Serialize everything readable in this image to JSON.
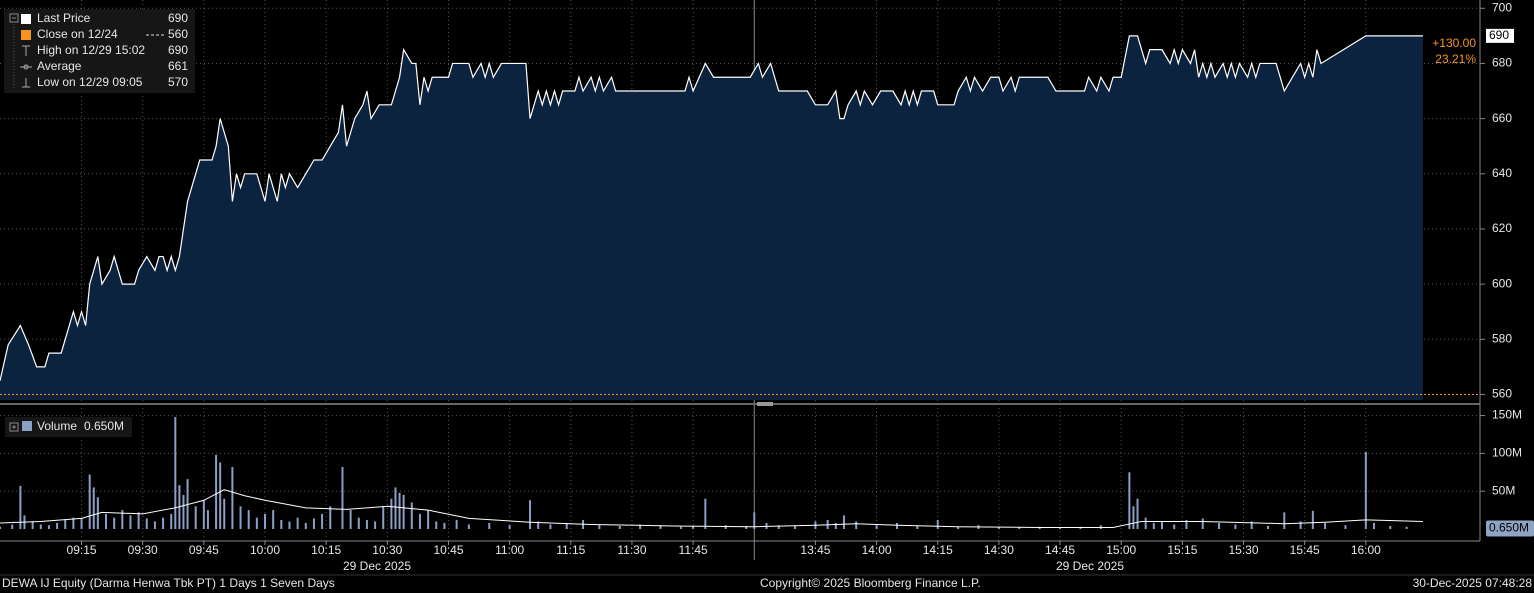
{
  "chart_data": [
    {
      "type": "area",
      "x": [
        "08:55",
        "08:57",
        "09:00",
        "09:02",
        "09:04",
        "09:06",
        "09:07",
        "09:10",
        "09:12",
        "09:13",
        "09:14",
        "09:15",
        "09:16",
        "09:17",
        "09:18",
        "09:19",
        "09:20",
        "09:22",
        "09:23",
        "09:24",
        "09:25",
        "09:28",
        "09:29",
        "09:31",
        "09:33",
        "09:34",
        "09:35",
        "09:36",
        "09:37",
        "09:38",
        "09:39",
        "09:40",
        "09:41",
        "09:42",
        "09:43",
        "09:44",
        "09:47",
        "09:48",
        "09:49",
        "09:50",
        "09:51",
        "09:52",
        "09:53",
        "09:54",
        "09:55",
        "09:58",
        "09:59",
        "10:00",
        "10:01",
        "10:02",
        "10:03",
        "10:04",
        "10:05",
        "10:06",
        "10:08",
        "10:10",
        "10:12",
        "10:14",
        "10:16",
        "10:18",
        "10:19",
        "10:20",
        "10:22",
        "10:24",
        "10:25",
        "10:26",
        "10:28",
        "10:31",
        "10:33",
        "10:34",
        "10:36",
        "10:37",
        "10:38",
        "10:39",
        "10:40",
        "10:41",
        "10:45",
        "10:46",
        "10:50",
        "10:51",
        "10:53",
        "10:54",
        "10:55",
        "10:56",
        "10:58",
        "11:04",
        "11:05",
        "11:07",
        "11:08",
        "11:09",
        "11:10",
        "11:11",
        "11:12",
        "11:13",
        "11:16",
        "11:17",
        "11:18",
        "11:20",
        "11:21",
        "11:22",
        "11:23",
        "11:25",
        "11:26",
        "11:43",
        "11:44",
        "11:45",
        "11:48",
        "11:50",
        "11:59",
        "13:31",
        "13:32",
        "13:34",
        "13:35",
        "13:36",
        "13:43",
        "13:45",
        "13:48",
        "13:50",
        "13:51",
        "13:52",
        "13:53",
        "13:55",
        "13:56",
        "13:57",
        "13:59",
        "14:01",
        "14:04",
        "14:06",
        "14:07",
        "14:08",
        "14:09",
        "14:10",
        "14:11",
        "14:14",
        "14:15",
        "14:19",
        "14:20",
        "14:22",
        "14:23",
        "14:24",
        "14:26",
        "14:28",
        "14:30",
        "14:31",
        "14:33",
        "14:34",
        "14:35",
        "14:42",
        "14:44",
        "14:51",
        "14:52",
        "14:54",
        "14:55",
        "14:57",
        "14:58",
        "15:00",
        "15:02",
        "15:04",
        "15:06",
        "15:07",
        "15:10",
        "15:12",
        "15:13",
        "15:14",
        "15:15",
        "15:17",
        "15:18",
        "15:19",
        "15:20",
        "15:21",
        "15:22",
        "15:23",
        "15:25",
        "15:26",
        "15:27",
        "15:28",
        "15:29",
        "15:31",
        "15:32",
        "15:33",
        "15:34",
        "15:38",
        "15:40",
        "15:42",
        "15:44",
        "15:45",
        "15:46",
        "15:47",
        "15:48",
        "15:49",
        "16:00",
        "16:14"
      ],
      "series": [
        {
          "name": "Last Price",
          "color": "#ffffff",
          "fill": "#0c2340",
          "values": [
            565,
            578,
            585,
            578,
            570,
            570,
            575,
            575,
            585,
            590,
            585,
            590,
            585,
            600,
            605,
            610,
            600,
            605,
            610,
            605,
            600,
            600,
            605,
            610,
            605,
            610,
            610,
            605,
            610,
            605,
            610,
            620,
            630,
            635,
            640,
            645,
            645,
            650,
            660,
            655,
            650,
            630,
            640,
            635,
            640,
            640,
            635,
            630,
            640,
            635,
            630,
            640,
            635,
            640,
            635,
            640,
            645,
            645,
            650,
            655,
            665,
            650,
            660,
            665,
            670,
            660,
            665,
            665,
            675,
            685,
            680,
            680,
            665,
            675,
            670,
            675,
            675,
            680,
            680,
            675,
            680,
            675,
            680,
            675,
            680,
            680,
            660,
            670,
            665,
            670,
            665,
            670,
            665,
            670,
            670,
            675,
            670,
            675,
            670,
            675,
            670,
            675,
            670,
            670,
            675,
            670,
            680,
            675,
            675,
            680,
            675,
            680,
            675,
            670,
            670,
            665,
            665,
            670,
            660,
            660,
            665,
            670,
            665,
            670,
            665,
            670,
            670,
            665,
            670,
            665,
            670,
            665,
            670,
            670,
            665,
            665,
            670,
            675,
            670,
            675,
            670,
            675,
            675,
            670,
            675,
            670,
            675,
            675,
            670,
            670,
            675,
            670,
            675,
            670,
            675,
            675,
            690,
            690,
            680,
            685,
            685,
            680,
            685,
            680,
            685,
            680,
            685,
            675,
            680,
            675,
            680,
            675,
            680,
            675,
            680,
            675,
            680,
            675,
            680,
            675,
            680,
            680,
            670,
            675,
            680,
            675,
            680,
            675,
            685,
            680,
            690,
            690
          ]
        }
      ],
      "xlim": [
        "08:55",
        "16:28"
      ],
      "x_break": [
        "12:00",
        "13:30"
      ],
      "xticks": [
        "09:15",
        "09:30",
        "09:45",
        "10:00",
        "10:15",
        "10:30",
        "10:45",
        "11:00",
        "11:15",
        "11:30",
        "11:45",
        "13:45",
        "14:00",
        "14:15",
        "14:30",
        "14:45",
        "15:00",
        "15:15",
        "15:30",
        "15:45",
        "16:00"
      ],
      "x_date_labels": [
        "29 Dec 2025",
        "29 Dec 2025"
      ],
      "ylim": [
        558,
        703
      ],
      "yticks": [
        560,
        580,
        600,
        620,
        640,
        660,
        680,
        700
      ],
      "grid": true,
      "legend": [
        {
          "name": "Last Price",
          "value": 690,
          "color": "#ffffff"
        },
        {
          "name": "Close on 12/24",
          "value": 560,
          "color": "#f7941d"
        },
        {
          "name": "High on 12/29 15:02",
          "value": 690
        },
        {
          "name": "Average",
          "value": 661
        },
        {
          "name": "Low on 12/29 09:05",
          "value": 570
        }
      ],
      "change": {
        "value": 130,
        "label": "+130.00"
      },
      "change_percent": {
        "value": 23.21,
        "label": "23.21%"
      },
      "annotation_color": "#f7941d"
    },
    {
      "type": "bar",
      "x": [
        "08:55",
        "08:58",
        "09:00",
        "09:01",
        "09:03",
        "09:05",
        "09:07",
        "09:09",
        "09:11",
        "09:13",
        "09:15",
        "09:17",
        "09:18",
        "09:19",
        "09:21",
        "09:23",
        "09:25",
        "09:27",
        "09:29",
        "09:31",
        "09:33",
        "09:35",
        "09:37",
        "09:38",
        "09:39",
        "09:40",
        "09:41",
        "09:43",
        "09:45",
        "09:46",
        "09:48",
        "09:49",
        "09:50",
        "09:52",
        "09:54",
        "09:56",
        "09:58",
        "10:00",
        "10:02",
        "10:04",
        "10:06",
        "10:08",
        "10:10",
        "10:12",
        "10:14",
        "10:16",
        "10:19",
        "10:21",
        "10:23",
        "10:25",
        "10:27",
        "10:29",
        "10:31",
        "10:32",
        "10:33",
        "10:34",
        "10:36",
        "10:38",
        "10:40",
        "10:42",
        "10:44",
        "10:47",
        "10:50",
        "10:55",
        "11:00",
        "11:05",
        "11:07",
        "11:10",
        "11:14",
        "11:18",
        "11:22",
        "11:27",
        "11:32",
        "11:37",
        "11:42",
        "11:45",
        "11:48",
        "11:53",
        "11:58",
        "13:30",
        "13:33",
        "13:36",
        "13:40",
        "13:45",
        "13:48",
        "13:50",
        "13:52",
        "13:55",
        "14:00",
        "14:05",
        "14:10",
        "14:15",
        "14:20",
        "14:25",
        "14:30",
        "14:35",
        "14:40",
        "14:45",
        "14:50",
        "14:55",
        "15:02",
        "15:03",
        "15:04",
        "15:06",
        "15:08",
        "15:10",
        "15:13",
        "15:16",
        "15:20",
        "15:24",
        "15:28",
        "15:32",
        "15:36",
        "15:40",
        "15:44",
        "15:47",
        "15:50",
        "15:55",
        "16:00",
        "16:02",
        "16:06",
        "16:10"
      ],
      "series": [
        {
          "name": "Volume",
          "color": "#8c9fc4",
          "values": [
            3000000,
            6000000,
            57000000,
            18000000,
            10000000,
            6000000,
            5000000,
            8000000,
            12000000,
            15000000,
            14000000,
            72000000,
            55000000,
            42000000,
            20000000,
            15000000,
            25000000,
            18000000,
            22000000,
            14000000,
            10000000,
            15000000,
            20000000,
            148000000,
            58000000,
            45000000,
            66000000,
            30000000,
            38000000,
            25000000,
            98000000,
            88000000,
            40000000,
            82000000,
            30000000,
            25000000,
            15000000,
            20000000,
            25000000,
            12000000,
            10000000,
            15000000,
            8000000,
            14000000,
            20000000,
            30000000,
            82000000,
            25000000,
            15000000,
            12000000,
            10000000,
            30000000,
            40000000,
            55000000,
            48000000,
            45000000,
            35000000,
            20000000,
            25000000,
            10000000,
            8000000,
            12000000,
            6000000,
            8000000,
            5000000,
            38000000,
            10000000,
            6000000,
            8000000,
            12000000,
            5000000,
            4000000,
            6000000,
            5000000,
            3000000,
            4000000,
            40000000,
            5000000,
            4000000,
            22000000,
            8000000,
            5000000,
            4000000,
            10000000,
            12000000,
            8000000,
            18000000,
            10000000,
            5000000,
            8000000,
            4000000,
            12000000,
            3000000,
            5000000,
            3000000,
            2000000,
            3000000,
            2000000,
            3000000,
            5000000,
            75000000,
            30000000,
            40000000,
            15000000,
            8000000,
            10000000,
            6000000,
            12000000,
            14000000,
            8000000,
            6000000,
            10000000,
            4000000,
            22000000,
            10000000,
            24000000,
            8000000,
            5000000,
            102000000,
            8000000,
            4000000,
            3000000
          ],
          "last_value": 650000,
          "last_value_label": "0.650M",
          "tag_color": "#8fa3c4"
        },
        {
          "type": "line",
          "color": "#ffffff",
          "x": [
            "08:55",
            "09:05",
            "09:15",
            "09:20",
            "09:30",
            "09:38",
            "09:45",
            "09:50",
            "09:55",
            "10:00",
            "10:10",
            "10:20",
            "10:30",
            "10:40",
            "10:50",
            "11:05",
            "11:20",
            "11:40",
            "11:59",
            "13:30",
            "13:45",
            "13:55",
            "14:05",
            "14:20",
            "14:40",
            "14:58",
            "15:05",
            "15:20",
            "15:40",
            "15:50",
            "16:00",
            "16:14"
          ],
          "values": [
            8000000,
            10000000,
            14000000,
            22000000,
            20000000,
            28000000,
            38000000,
            52000000,
            44000000,
            38000000,
            28000000,
            26000000,
            30000000,
            25000000,
            14000000,
            9000000,
            6000000,
            4000000,
            3000000,
            3000000,
            5000000,
            7000000,
            5000000,
            3000000,
            2000000,
            2000000,
            10000000,
            10000000,
            7000000,
            9000000,
            12000000,
            10000000
          ]
        }
      ],
      "ylim": [
        0,
        160000000
      ],
      "yticks": [
        {
          "value": 50000000,
          "label": "50M"
        },
        {
          "value": 100000000,
          "label": "100M"
        },
        {
          "value": 150000000,
          "label": "150M"
        }
      ],
      "grid": true
    }
  ],
  "footer": {
    "left": "DEWA IJ Equity (Darma Henwa Tbk PT) 1 Days 1 Seven Days",
    "center": "Copyright© 2025 Bloomberg Finance L.P.",
    "right": "30-Dec-2025 07:48:28"
  }
}
